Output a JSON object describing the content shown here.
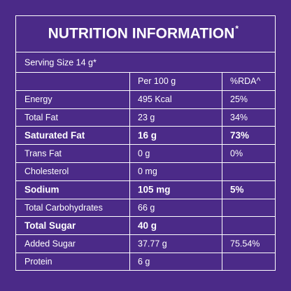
{
  "header": {
    "title": "NUTRITION INFORMATION",
    "title_mark": "*",
    "serving_size": "Serving Size 14 g*"
  },
  "table": {
    "columns": [
      "Per 100 g",
      "%RDA^"
    ],
    "rows": [
      {
        "name": "Energy",
        "per_100g": "495 Kcal",
        "rda": "25%"
      },
      {
        "name": "Total Fat",
        "per_100g": "23 g",
        "rda": "34%"
      },
      {
        "name": "Saturated Fat",
        "per_100g": "16 g",
        "rda": "73%",
        "bold": true
      },
      {
        "name": "Trans Fat",
        "per_100g": "0 g",
        "rda": "0%"
      },
      {
        "name": "Cholesterol",
        "per_100g": "0 mg"
      },
      {
        "name": "Sodium",
        "per_100g": "105 mg",
        "rda": "5%",
        "bold": true
      },
      {
        "name": "Total Carbohydrates",
        "per_100g": "66 g"
      },
      {
        "name": "Total Sugar",
        "per_100g": "40 g",
        "bold": true
      },
      {
        "name": "Added Sugar",
        "per_100g": "37.77 g",
        "rda": "75.54%"
      },
      {
        "name": "Protein",
        "per_100g": "6 g"
      }
    ]
  }
}
